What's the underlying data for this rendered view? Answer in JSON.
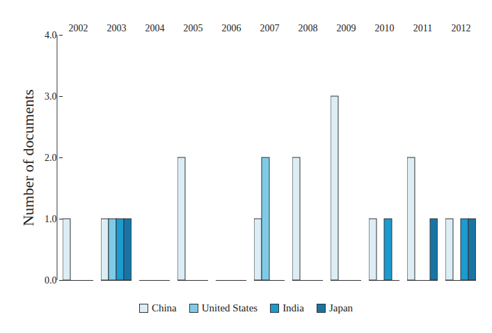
{
  "chart_data": {
    "type": "bar",
    "y_label": "Number of documents",
    "categories": [
      "2002",
      "2003",
      "2004",
      "2005",
      "2006",
      "2007",
      "2008",
      "2009",
      "2010",
      "2011",
      "2012"
    ],
    "series": [
      {
        "name": "China",
        "color": "#dcedf5",
        "values": [
          1,
          1,
          0,
          2,
          0,
          1,
          2,
          3,
          1,
          2,
          1
        ]
      },
      {
        "name": "United States",
        "color": "#7ecbe8",
        "values": [
          0,
          1,
          0,
          0,
          0,
          2,
          0,
          0,
          0,
          0,
          0
        ]
      },
      {
        "name": "India",
        "color": "#1b9bd0",
        "values": [
          0,
          1,
          0,
          0,
          0,
          0,
          0,
          0,
          1,
          0,
          1
        ]
      },
      {
        "name": "Japan",
        "color": "#1a74a3",
        "values": [
          0,
          1,
          0,
          0,
          0,
          0,
          0,
          0,
          0,
          1,
          1
        ]
      }
    ],
    "ylim": [
      0,
      4
    ],
    "yticks": [
      0,
      1,
      2,
      3,
      4
    ],
    "grid": false,
    "legend": "bottom"
  }
}
